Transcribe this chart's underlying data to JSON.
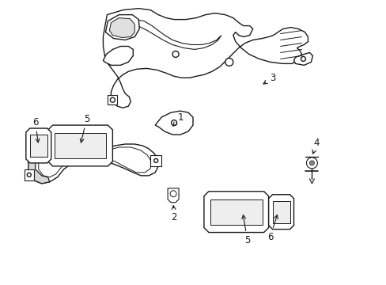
{
  "background_color": "#ffffff",
  "line_color": "#1a1a1a",
  "lw": 1.0,
  "fig_width": 4.89,
  "fig_height": 3.6,
  "dpi": 100
}
